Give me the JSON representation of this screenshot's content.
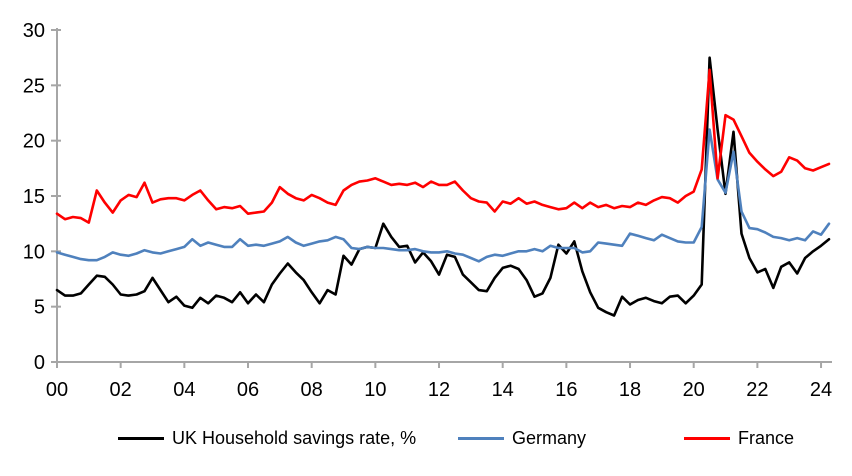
{
  "chart_data": {
    "type": "line",
    "title": "",
    "xlabel": "",
    "ylabel": "",
    "ylim": [
      0,
      30
    ],
    "grid": false,
    "legend_position": "bottom",
    "frequency": "quarterly",
    "x_range": {
      "start": "1999 Q4",
      "end": "2024 Q1"
    },
    "y_ticks": [
      0,
      5,
      10,
      15,
      20,
      25,
      30
    ],
    "x_tick_labels": [
      "00",
      "02",
      "04",
      "06",
      "08",
      "10",
      "12",
      "14",
      "16",
      "18",
      "20",
      "22",
      "24"
    ],
    "x_ticks_every_n_points": 8,
    "axis_color": "#a6a6a6",
    "series": [
      {
        "name": "UK Household savings rate, %",
        "color": "#000000",
        "values": [
          6.5,
          6.0,
          6.0,
          6.2,
          7.0,
          7.8,
          7.7,
          7.0,
          6.1,
          6.0,
          6.1,
          6.4,
          7.6,
          6.5,
          5.4,
          5.9,
          5.1,
          4.9,
          5.8,
          5.3,
          6.0,
          5.8,
          5.4,
          6.3,
          5.3,
          6.1,
          5.4,
          7.0,
          8.0,
          8.9,
          8.1,
          7.4,
          6.3,
          5.3,
          6.5,
          6.1,
          9.6,
          8.8,
          10.2,
          10.4,
          10.3,
          12.5,
          11.3,
          10.4,
          10.5,
          9.0,
          9.9,
          9.1,
          7.9,
          9.7,
          9.5,
          7.9,
          7.2,
          6.5,
          6.4,
          7.6,
          8.5,
          8.7,
          8.4,
          7.4,
          5.9,
          6.2,
          7.6,
          10.6,
          9.8,
          10.9,
          8.2,
          6.3,
          4.9,
          4.5,
          4.2,
          5.9,
          5.2,
          5.6,
          5.8,
          5.5,
          5.3,
          5.9,
          6.0,
          5.3,
          6.0,
          7.0,
          27.5,
          21.0,
          15.2,
          20.8,
          11.6,
          9.4,
          8.1,
          8.4,
          6.7,
          8.6,
          9.0,
          8.0,
          9.4,
          10.0,
          10.5,
          11.1
        ]
      },
      {
        "name": "Germany",
        "color": "#4f81bd",
        "values": [
          9.9,
          9.7,
          9.5,
          9.3,
          9.2,
          9.2,
          9.5,
          9.9,
          9.7,
          9.6,
          9.8,
          10.1,
          9.9,
          9.8,
          10.0,
          10.2,
          10.4,
          11.1,
          10.5,
          10.8,
          10.6,
          10.4,
          10.4,
          11.1,
          10.5,
          10.6,
          10.5,
          10.7,
          10.9,
          11.3,
          10.8,
          10.5,
          10.7,
          10.9,
          11.0,
          11.3,
          11.1,
          10.3,
          10.2,
          10.4,
          10.3,
          10.3,
          10.2,
          10.1,
          10.1,
          10.2,
          10.0,
          9.9,
          9.9,
          10.0,
          9.8,
          9.7,
          9.4,
          9.1,
          9.5,
          9.7,
          9.6,
          9.8,
          10.0,
          10.0,
          10.2,
          10.0,
          10.5,
          10.3,
          10.3,
          10.3,
          9.9,
          10.0,
          10.8,
          10.7,
          10.6,
          10.5,
          11.6,
          11.4,
          11.2,
          11.0,
          11.5,
          11.2,
          10.9,
          10.8,
          10.8,
          12.2,
          21.0,
          16.5,
          15.3,
          19.0,
          13.6,
          12.1,
          12.0,
          11.7,
          11.3,
          11.2,
          11.0,
          11.2,
          11.0,
          11.8,
          11.5,
          12.5
        ]
      },
      {
        "name": "France",
        "color": "#ff0000",
        "values": [
          13.4,
          12.9,
          13.1,
          13.0,
          12.6,
          15.5,
          14.4,
          13.5,
          14.6,
          15.1,
          14.9,
          16.2,
          14.4,
          14.7,
          14.8,
          14.8,
          14.6,
          15.1,
          15.5,
          14.6,
          13.8,
          14.0,
          13.9,
          14.1,
          13.4,
          13.5,
          13.6,
          14.4,
          15.8,
          15.2,
          14.8,
          14.6,
          15.1,
          14.8,
          14.4,
          14.2,
          15.5,
          16.0,
          16.3,
          16.4,
          16.6,
          16.3,
          16.0,
          16.1,
          16.0,
          16.2,
          15.8,
          16.3,
          16.0,
          16.0,
          16.3,
          15.5,
          14.8,
          14.5,
          14.4,
          13.6,
          14.5,
          14.3,
          14.8,
          14.3,
          14.5,
          14.2,
          14.0,
          13.8,
          13.9,
          14.4,
          13.9,
          14.4,
          14.0,
          14.2,
          13.9,
          14.1,
          14.0,
          14.4,
          14.2,
          14.6,
          14.9,
          14.8,
          14.4,
          15.0,
          15.4,
          17.4,
          26.4,
          16.6,
          22.3,
          21.9,
          20.4,
          18.9,
          18.1,
          17.4,
          16.8,
          17.2,
          18.5,
          18.2,
          17.5,
          17.3,
          17.6,
          17.9
        ]
      }
    ]
  }
}
